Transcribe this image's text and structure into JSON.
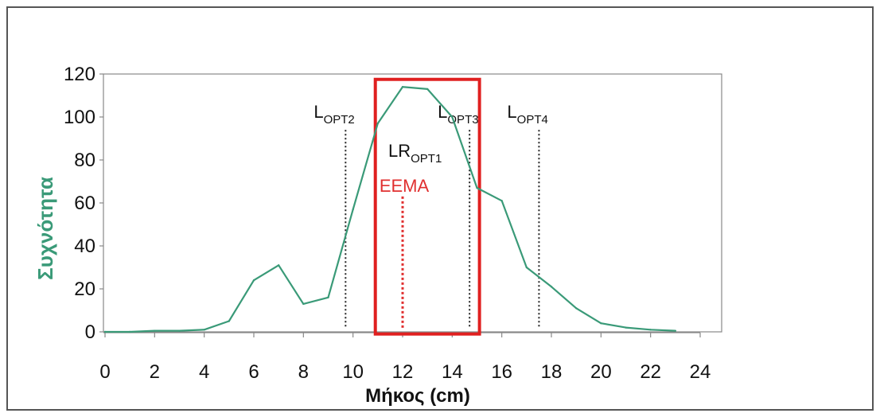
{
  "chart_data": {
    "type": "line",
    "xlabel": "Μήκος (cm)",
    "ylabel": "Συχνότητα",
    "xlim": [
      0,
      24
    ],
    "ylim": [
      0,
      120
    ],
    "x_ticks": [
      0,
      2,
      4,
      6,
      8,
      10,
      12,
      14,
      16,
      18,
      20,
      22,
      24
    ],
    "y_ticks": [
      0,
      20,
      40,
      60,
      80,
      100,
      120
    ],
    "grid": false,
    "series": [
      {
        "color": "#3a9a78",
        "x": [
          0,
          1,
          2,
          3,
          4,
          5,
          6,
          7,
          8,
          9,
          10,
          11,
          12,
          13,
          14,
          15,
          16,
          17,
          18,
          19,
          20,
          21,
          22,
          23
        ],
        "values": [
          0,
          0,
          0.5,
          0.5,
          1,
          5,
          24,
          31,
          13,
          16,
          57,
          97,
          114,
          113,
          100,
          67,
          61,
          30,
          21,
          11,
          4,
          2,
          1,
          0.5
        ]
      }
    ],
    "reference_lines": [
      {
        "x": 9.7,
        "y_top": 94,
        "color": "#222222",
        "label_main": "L",
        "label_sub": "OPT2"
      },
      {
        "x": 14.7,
        "y_top": 94,
        "color": "#222222",
        "label_main": "L",
        "label_sub": "OPT3"
      },
      {
        "x": 17.5,
        "y_top": 94,
        "color": "#222222",
        "label_main": "L",
        "label_sub": "OPT4"
      },
      {
        "x": 12.0,
        "y_top": 63,
        "color": "#e03030",
        "label_main": "EEMA",
        "label_sub": ""
      }
    ],
    "annotations": [
      {
        "main": "LR",
        "sub": "OPT1",
        "x": 12.1,
        "y": 82
      }
    ],
    "highlight_box": {
      "x0": 10.9,
      "x1": 15.1,
      "y0": -1,
      "y1": 117.5,
      "color": "#e02020"
    }
  },
  "colors": {
    "axis": "#888888",
    "line": "#3a9a78",
    "text": "#111111"
  }
}
